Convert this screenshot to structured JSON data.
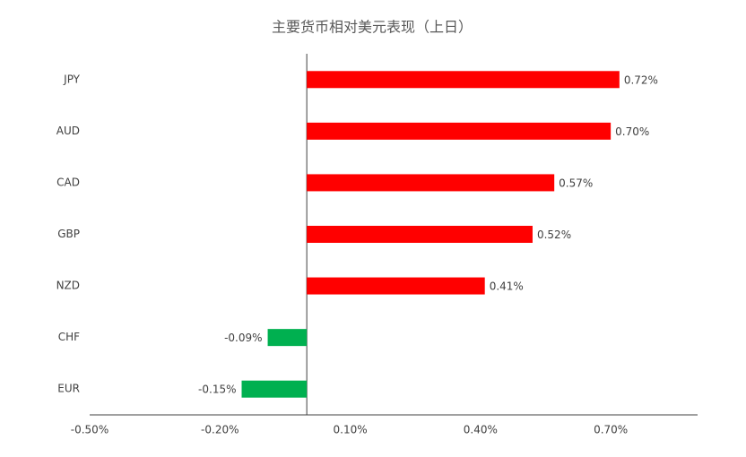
{
  "chart_data": {
    "type": "hbar",
    "title": "主要货币相对美元表现（上日）",
    "categories": [
      "JPY",
      "AUD",
      "CAD",
      "GBP",
      "NZD",
      "CHF",
      "EUR"
    ],
    "values": [
      0.72,
      0.7,
      0.57,
      0.52,
      0.41,
      -0.09,
      -0.15
    ],
    "value_labels": [
      "0.72%",
      "0.70%",
      "0.57%",
      "0.52%",
      "0.41%",
      "-0.09%",
      "-0.15%"
    ],
    "colors": [
      "#ff0000",
      "#ff0000",
      "#ff0000",
      "#ff0000",
      "#ff0000",
      "#00b050",
      "#00b050"
    ],
    "xlim": [
      -0.5,
      0.9
    ],
    "xticks": [
      {
        "value": -0.5,
        "label": "-0.50%"
      },
      {
        "value": -0.2,
        "label": "-0.20%"
      },
      {
        "value": 0.1,
        "label": "0.10%"
      },
      {
        "value": 0.4,
        "label": "0.40%"
      },
      {
        "value": 0.7,
        "label": "0.70%"
      }
    ],
    "grid": false
  }
}
